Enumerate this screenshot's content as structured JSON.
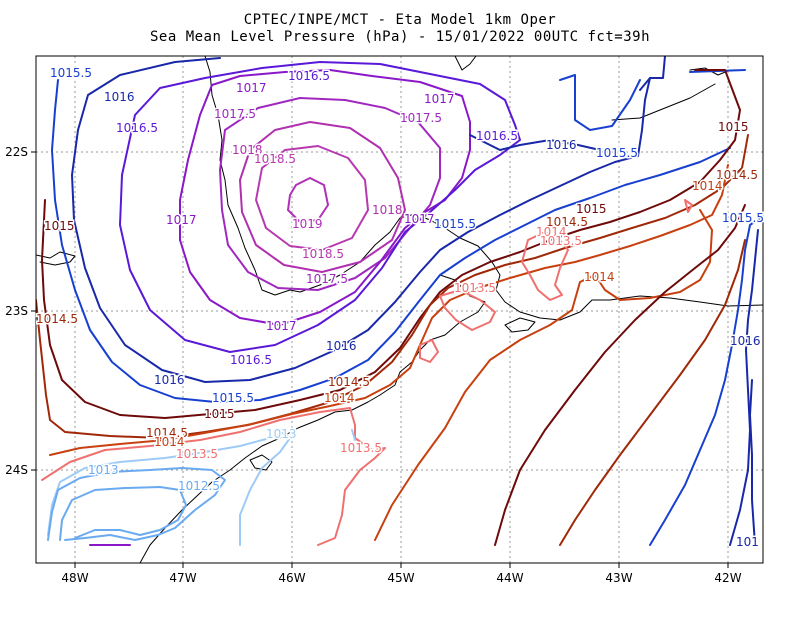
{
  "header": {
    "title_line1": "CPTEC/INPE/MCT -  Eta Model 1km Oper",
    "title_line2": "Sea Mean Level Pressure (hPa) - 15/01/2022 00UTC fct=39h"
  },
  "axes": {
    "lon_ticks": [
      "48W",
      "47W",
      "46W",
      "45W",
      "44W",
      "43W",
      "42W"
    ],
    "lat_ticks": [
      "22S",
      "23S",
      "24S"
    ]
  },
  "colors": {
    "c1012_5": "#6aaaf0",
    "c1013": "#9ecbf5",
    "c1013_5": "#f07070",
    "c1014": "#c84010",
    "c1014_5": "#a02808",
    "c1015": "#6e0a0a",
    "c1015_5": "#1840d0",
    "c1016": "#1828a8",
    "c1016_5": "#5a18d8",
    "c1017": "#8a18c8",
    "c1017_5": "#a028c0",
    "c1018": "#b030b0",
    "c1018_5": "#b838b0",
    "c1019": "#b030b8",
    "coast": "#000000",
    "grid": "#999999"
  },
  "contour_labels": [
    {
      "id": "l1",
      "text": "1015.5",
      "color": "#1840d0"
    },
    {
      "id": "l2",
      "text": "1016.5",
      "color": "#5a18d8"
    },
    {
      "id": "l3",
      "text": "1016",
      "color": "#1828a8"
    },
    {
      "id": "l4",
      "text": "1017",
      "color": "#8a18c8"
    },
    {
      "id": "l5",
      "text": "1017",
      "color": "#8a18c8"
    },
    {
      "id": "l6",
      "text": "1017.5",
      "color": "#a028c0"
    },
    {
      "id": "l7",
      "text": "1017.5",
      "color": "#a028c0"
    },
    {
      "id": "l8",
      "text": "1016.5",
      "color": "#5a18d8"
    },
    {
      "id": "l9",
      "text": "1018",
      "color": "#b030b0"
    },
    {
      "id": "l10",
      "text": "1018.5",
      "color": "#b838b0"
    },
    {
      "id": "l11",
      "text": "1016.5",
      "color": "#5a18d8"
    },
    {
      "id": "l12",
      "text": "1016",
      "color": "#1828a8"
    },
    {
      "id": "l13",
      "text": "1015.5",
      "color": "#1840d0"
    },
    {
      "id": "l14",
      "text": "1015",
      "color": "#6e0a0a"
    },
    {
      "id": "l15",
      "text": "1014.5",
      "color": "#a02808"
    },
    {
      "id": "l16",
      "text": "1014",
      "color": "#c84010"
    },
    {
      "id": "l17",
      "text": "1019",
      "color": "#b030b8"
    },
    {
      "id": "l18",
      "text": "1017",
      "color": "#8a18c8"
    },
    {
      "id": "l19",
      "text": "1018",
      "color": "#b030b0"
    },
    {
      "id": "l20",
      "text": "1017",
      "color": "#8a18c8"
    },
    {
      "id": "l21",
      "text": "1015.5",
      "color": "#1840d0"
    },
    {
      "id": "l22",
      "text": "1015",
      "color": "#6e0a0a"
    },
    {
      "id": "l23",
      "text": "1014.5",
      "color": "#a02808"
    },
    {
      "id": "l24",
      "text": "1014",
      "color": "#f07070"
    },
    {
      "id": "l25",
      "text": "1013.5",
      "color": "#f07070"
    },
    {
      "id": "l26",
      "text": "1015",
      "color": "#6e0a0a"
    },
    {
      "id": "l27",
      "text": "1015.5",
      "color": "#1840d0"
    },
    {
      "id": "l28",
      "text": "1018.5",
      "color": "#b838b0"
    },
    {
      "id": "l29",
      "text": "1017.5",
      "color": "#a028c0"
    },
    {
      "id": "l30",
      "text": "1013.5",
      "color": "#f07070"
    },
    {
      "id": "l31",
      "text": "1014",
      "color": "#c84010"
    },
    {
      "id": "l32",
      "text": "1014.5",
      "color": "#a02808"
    },
    {
      "id": "l33",
      "text": "1017",
      "color": "#8a18c8"
    },
    {
      "id": "l34",
      "text": "1016",
      "color": "#1828a8"
    },
    {
      "id": "l35",
      "text": "1016",
      "color": "#1828a8"
    },
    {
      "id": "l36",
      "text": "1016.5",
      "color": "#5a18d8"
    },
    {
      "id": "l37",
      "text": "1016",
      "color": "#1828a8"
    },
    {
      "id": "l38",
      "text": "1015.5",
      "color": "#1840d0"
    },
    {
      "id": "l39",
      "text": "1014.5",
      "color": "#a02808"
    },
    {
      "id": "l40",
      "text": "1014",
      "color": "#c84010"
    },
    {
      "id": "l41",
      "text": "1015",
      "color": "#6e0a0a"
    },
    {
      "id": "l42",
      "text": "1014.5",
      "color": "#a02808"
    },
    {
      "id": "l43",
      "text": "1014",
      "color": "#c84010"
    },
    {
      "id": "l44",
      "text": "1013.5",
      "color": "#f07070"
    },
    {
      "id": "l45",
      "text": "1013",
      "color": "#9ecbf5"
    },
    {
      "id": "l46",
      "text": "1013.5",
      "color": "#f07070"
    },
    {
      "id": "l47",
      "text": "1013",
      "color": "#6aaaf0"
    },
    {
      "id": "l48",
      "text": "1012.5",
      "color": "#6aaaf0"
    },
    {
      "id": "l49",
      "text": "1016",
      "color": "#1828a8"
    },
    {
      "id": "l50",
      "text": "101",
      "color": "#1828a8"
    },
    {
      "id": "l51",
      "text": "1015.5",
      "color": "#1840d0"
    },
    {
      "id": "l52",
      "text": "1014",
      "color": "#c84010"
    }
  ]
}
